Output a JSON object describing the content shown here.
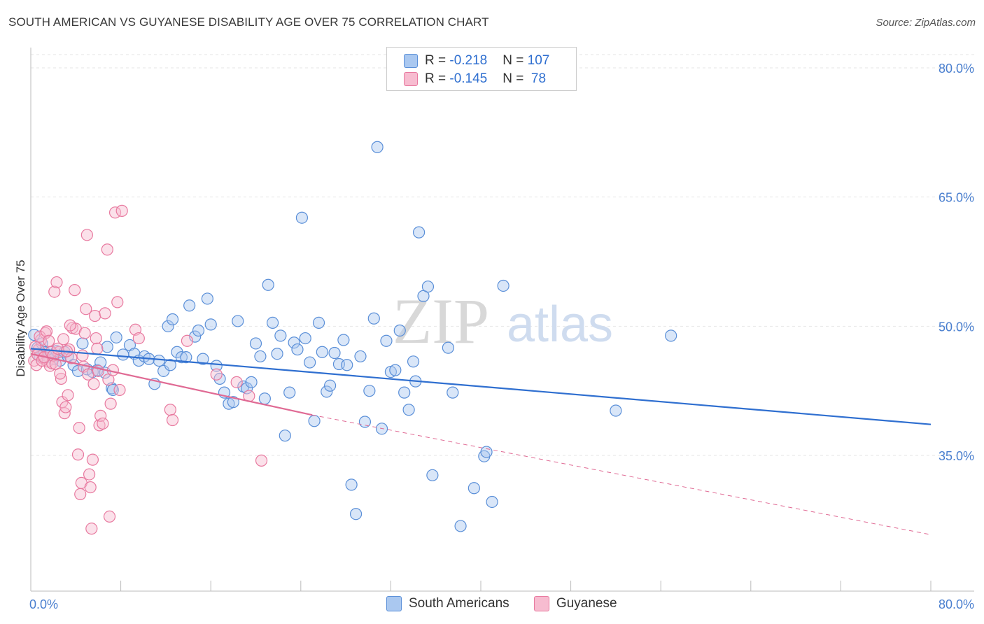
{
  "header": {
    "title": "SOUTH AMERICAN VS GUYANESE DISABILITY AGE OVER 75 CORRELATION CHART",
    "source": "Source: ZipAtlas.com"
  },
  "watermark": {
    "zip": "ZIP",
    "atlas": "atlas"
  },
  "legend": {
    "rows": [
      {
        "r_label": "R = ",
        "r_value": "-0.218",
        "n_label": "N = ",
        "n_value": "107"
      },
      {
        "r_label": "R = ",
        "r_value": "-0.145",
        "n_label": "N = ",
        "n_value": " 78"
      }
    ]
  },
  "bottom_legend": {
    "items": [
      {
        "label": "South Americans"
      },
      {
        "label": "Guyanese"
      }
    ]
  },
  "colors": {
    "blue_fill": "#aac8f0",
    "blue_stroke": "#5a8fd8",
    "blue_line": "#2f6fd0",
    "pink_fill": "#f7bcd0",
    "pink_stroke": "#e8799f",
    "pink_line": "#e06a94",
    "grid": "#e6e6e6",
    "tick_text": "#4a7fcf"
  },
  "chart_data": {
    "type": "scatter",
    "title": "SOUTH AMERICAN VS GUYANESE DISABILITY AGE OVER 75 CORRELATION CHART",
    "xlabel": "",
    "ylabel": "Disability Age Over 75",
    "xlim": [
      0,
      80
    ],
    "ylim": [
      20,
      85
    ],
    "x_tick_labels": [
      "0.0%",
      "80.0%"
    ],
    "y_ticks": [
      35,
      50,
      65,
      80
    ],
    "y_tick_labels": [
      "35.0%",
      "50.0%",
      "65.0%",
      "80.0%"
    ],
    "grid": true,
    "legend_position": "top-center",
    "series": [
      {
        "name": "South Americans",
        "color": "#5a8fd8",
        "trend": {
          "x": [
            0,
            80
          ],
          "y": [
            47.4,
            38.6
          ]
        },
        "points": [
          [
            0.3,
            49.0
          ],
          [
            0.6,
            47.5
          ],
          [
            0.8,
            46.5
          ],
          [
            1.0,
            48.0
          ],
          [
            1.2,
            47.0
          ],
          [
            1.5,
            46.5
          ],
          [
            1.8,
            47.0
          ],
          [
            2.0,
            46.2
          ],
          [
            2.3,
            47.1
          ],
          [
            2.6,
            46.0
          ],
          [
            3.0,
            47.0
          ],
          [
            3.3,
            46.5
          ],
          [
            3.8,
            45.5
          ],
          [
            4.2,
            44.8
          ],
          [
            4.6,
            48.0
          ],
          [
            5.0,
            45.0
          ],
          [
            5.5,
            44.7
          ],
          [
            5.9,
            44.9
          ],
          [
            6.2,
            45.8
          ],
          [
            6.6,
            44.6
          ],
          [
            6.8,
            47.6
          ],
          [
            7.2,
            42.8
          ],
          [
            7.6,
            48.7
          ],
          [
            7.3,
            42.6
          ],
          [
            8.2,
            46.7
          ],
          [
            8.8,
            47.8
          ],
          [
            9.2,
            46.8
          ],
          [
            9.6,
            46.0
          ],
          [
            10.1,
            46.5
          ],
          [
            10.5,
            46.2
          ],
          [
            11.0,
            43.3
          ],
          [
            11.4,
            46.0
          ],
          [
            11.8,
            44.8
          ],
          [
            12.2,
            50.0
          ],
          [
            12.6,
            50.8
          ],
          [
            13.0,
            47.0
          ],
          [
            13.4,
            46.4
          ],
          [
            13.8,
            46.4
          ],
          [
            12.4,
            45.5
          ],
          [
            14.1,
            52.4
          ],
          [
            14.6,
            48.8
          ],
          [
            14.9,
            49.5
          ],
          [
            15.3,
            46.2
          ],
          [
            15.7,
            53.2
          ],
          [
            16.0,
            50.2
          ],
          [
            16.5,
            45.4
          ],
          [
            16.8,
            43.9
          ],
          [
            17.2,
            42.3
          ],
          [
            17.6,
            41.0
          ],
          [
            18.0,
            41.2
          ],
          [
            18.4,
            50.6
          ],
          [
            18.9,
            43.0
          ],
          [
            19.2,
            42.8
          ],
          [
            19.6,
            43.5
          ],
          [
            20.0,
            48.0
          ],
          [
            20.4,
            46.5
          ],
          [
            20.8,
            41.6
          ],
          [
            21.1,
            54.8
          ],
          [
            21.5,
            50.4
          ],
          [
            21.9,
            46.8
          ],
          [
            22.2,
            48.9
          ],
          [
            22.6,
            37.3
          ],
          [
            23.0,
            42.3
          ],
          [
            23.4,
            48.1
          ],
          [
            23.7,
            47.3
          ],
          [
            24.1,
            62.6
          ],
          [
            24.4,
            48.6
          ],
          [
            24.8,
            45.8
          ],
          [
            25.2,
            39.0
          ],
          [
            25.6,
            50.4
          ],
          [
            25.9,
            47.0
          ],
          [
            26.3,
            42.4
          ],
          [
            26.6,
            43.1
          ],
          [
            27.0,
            46.9
          ],
          [
            27.4,
            45.6
          ],
          [
            27.8,
            48.4
          ],
          [
            28.1,
            45.5
          ],
          [
            28.5,
            31.6
          ],
          [
            28.9,
            28.2
          ],
          [
            29.3,
            46.5
          ],
          [
            29.7,
            38.9
          ],
          [
            30.1,
            42.5
          ],
          [
            30.5,
            50.9
          ],
          [
            30.8,
            70.8
          ],
          [
            31.2,
            38.1
          ],
          [
            31.6,
            48.3
          ],
          [
            32.0,
            44.7
          ],
          [
            32.4,
            44.9
          ],
          [
            32.8,
            49.5
          ],
          [
            33.2,
            42.3
          ],
          [
            33.6,
            40.3
          ],
          [
            34.0,
            45.9
          ],
          [
            34.2,
            43.6
          ],
          [
            34.5,
            60.9
          ],
          [
            34.9,
            53.5
          ],
          [
            35.3,
            54.6
          ],
          [
            35.7,
            32.7
          ],
          [
            37.1,
            47.5
          ],
          [
            37.5,
            42.3
          ],
          [
            38.2,
            26.8
          ],
          [
            39.4,
            31.2
          ],
          [
            40.3,
            34.9
          ],
          [
            40.5,
            35.4
          ],
          [
            41.0,
            29.6
          ],
          [
            42.0,
            54.7
          ],
          [
            52.0,
            40.2
          ],
          [
            56.9,
            48.9
          ]
        ]
      },
      {
        "name": "Guyanese",
        "color": "#e8799f",
        "trend": {
          "x": [
            0,
            25
          ],
          "y": [
            46.8,
            39.7
          ]
        },
        "trend_dashed": {
          "x": [
            25,
            80
          ],
          "y": [
            39.7,
            25.8
          ]
        },
        "points": [
          [
            0.3,
            46.0
          ],
          [
            0.5,
            45.5
          ],
          [
            0.7,
            47.3
          ],
          [
            0.9,
            48.4
          ],
          [
            1.1,
            46.3
          ],
          [
            1.3,
            49.2
          ],
          [
            1.5,
            45.9
          ],
          [
            1.7,
            45.4
          ],
          [
            1.9,
            45.7
          ],
          [
            2.1,
            54.0
          ],
          [
            2.3,
            55.1
          ],
          [
            2.5,
            47.0
          ],
          [
            2.7,
            43.9
          ],
          [
            2.8,
            41.2
          ],
          [
            3.0,
            39.9
          ],
          [
            3.1,
            40.6
          ],
          [
            3.3,
            42.0
          ],
          [
            3.4,
            47.3
          ],
          [
            3.6,
            46.3
          ],
          [
            3.7,
            49.8
          ],
          [
            3.9,
            54.2
          ],
          [
            4.0,
            49.7
          ],
          [
            4.2,
            35.1
          ],
          [
            4.3,
            38.2
          ],
          [
            4.4,
            30.5
          ],
          [
            4.5,
            31.8
          ],
          [
            4.6,
            46.6
          ],
          [
            4.7,
            45.3
          ],
          [
            4.8,
            49.2
          ],
          [
            4.9,
            52.0
          ],
          [
            5.0,
            60.6
          ],
          [
            5.1,
            44.4
          ],
          [
            5.2,
            32.8
          ],
          [
            5.3,
            31.3
          ],
          [
            5.4,
            26.5
          ],
          [
            5.5,
            34.5
          ],
          [
            5.6,
            43.3
          ],
          [
            5.7,
            51.2
          ],
          [
            5.8,
            48.6
          ],
          [
            5.9,
            47.4
          ],
          [
            6.0,
            44.8
          ],
          [
            6.1,
            38.5
          ],
          [
            6.2,
            39.6
          ],
          [
            6.4,
            38.7
          ],
          [
            6.6,
            51.5
          ],
          [
            6.8,
            58.9
          ],
          [
            6.9,
            43.8
          ],
          [
            7.0,
            27.9
          ],
          [
            7.1,
            41.0
          ],
          [
            7.3,
            44.9
          ],
          [
            7.5,
            63.2
          ],
          [
            7.7,
            52.8
          ],
          [
            7.9,
            42.6
          ],
          [
            8.1,
            63.4
          ],
          [
            0.4,
            47.6
          ],
          [
            0.6,
            46.7
          ],
          [
            0.8,
            48.8
          ],
          [
            1.0,
            46.0
          ],
          [
            1.2,
            46.4
          ],
          [
            1.4,
            49.4
          ],
          [
            1.6,
            48.3
          ],
          [
            1.8,
            47.0
          ],
          [
            2.0,
            46.6
          ],
          [
            2.2,
            45.6
          ],
          [
            2.4,
            47.4
          ],
          [
            2.6,
            44.5
          ],
          [
            2.9,
            48.5
          ],
          [
            3.2,
            47.1
          ],
          [
            3.5,
            50.1
          ],
          [
            9.3,
            49.6
          ],
          [
            9.6,
            48.6
          ],
          [
            12.4,
            40.3
          ],
          [
            12.6,
            39.1
          ],
          [
            13.9,
            48.3
          ],
          [
            16.5,
            44.4
          ],
          [
            18.3,
            43.5
          ],
          [
            19.4,
            41.9
          ],
          [
            20.5,
            34.4
          ]
        ]
      }
    ]
  }
}
